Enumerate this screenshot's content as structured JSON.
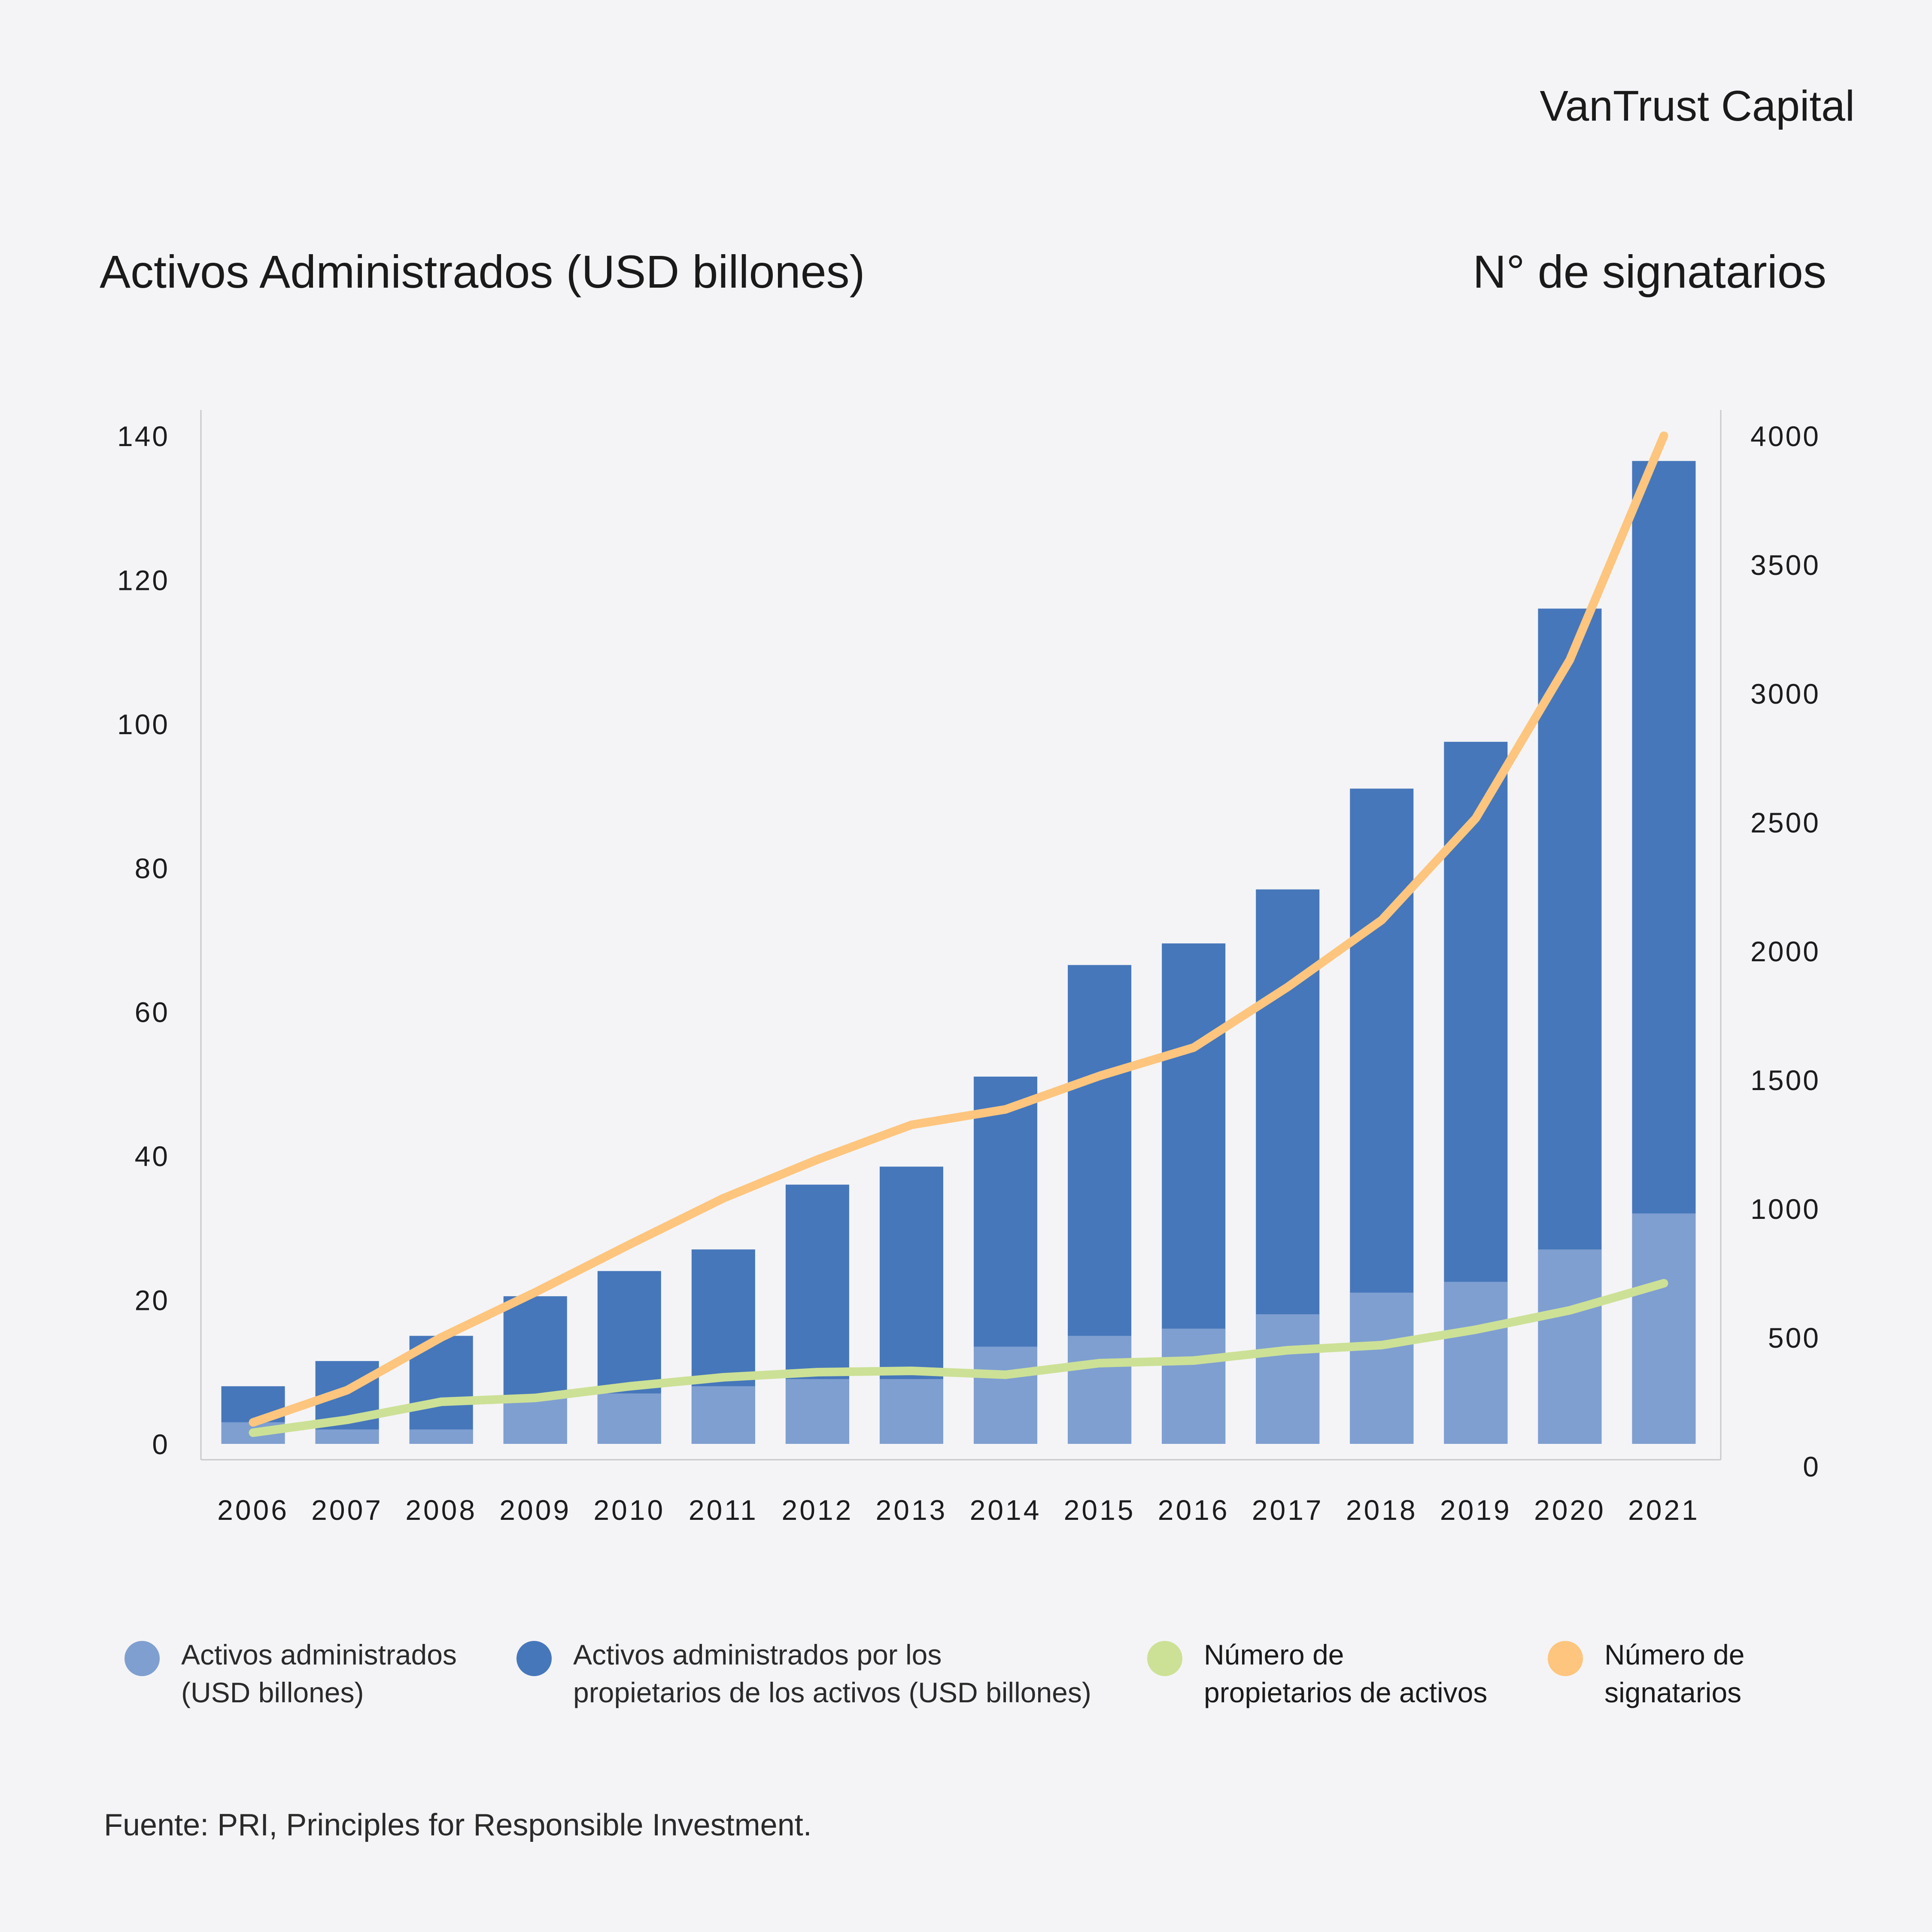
{
  "brand": "VanTrust Capital",
  "titles": {
    "left": "Activos Administrados (USD billones)",
    "right": "N° de signatarios"
  },
  "chart_data": {
    "type": "bar",
    "categories": [
      "2006",
      "2007",
      "2008",
      "2009",
      "2010",
      "2011",
      "2012",
      "2013",
      "2014",
      "2015",
      "2016",
      "2017",
      "2018",
      "2019",
      "2020",
      "2021"
    ],
    "left_axis": {
      "ylim": [
        0,
        140
      ],
      "ticks": [
        0,
        20,
        40,
        60,
        80,
        100,
        120,
        140
      ]
    },
    "right_axis": {
      "ylim": [
        0,
        4000
      ],
      "ticks": [
        0,
        500,
        1000,
        1500,
        2000,
        2500,
        3000,
        3500,
        4000
      ]
    },
    "series": [
      {
        "name": "Activos administrados\n(USD billones)",
        "type": "bar",
        "axis": "left",
        "color": "#7f9fd0",
        "values": [
          3,
          2,
          2,
          6.5,
          7,
          8,
          9,
          9,
          13.5,
          15,
          16,
          18,
          21,
          22.5,
          27,
          32
        ]
      },
      {
        "name": "Activos administrados por los\n propietarios de los activos (USD billones)",
        "type": "bar",
        "axis": "left",
        "color": "#4777bb",
        "values": [
          8,
          11.5,
          15,
          20.5,
          24,
          27,
          36,
          38.5,
          51,
          66.5,
          69.5,
          77,
          91,
          97.5,
          116,
          136.5
        ]
      },
      {
        "name": "Número de\npropietarios de activos",
        "type": "line",
        "axis": "right",
        "color": "#cde196",
        "values": [
          130,
          180,
          250,
          265,
          310,
          345,
          365,
          370,
          355,
          400,
          410,
          450,
          470,
          530,
          605,
          710
        ]
      },
      {
        "name": "Número de\nsignatarios",
        "type": "line",
        "axis": "right",
        "color": "#fdc57d",
        "values": [
          170,
          295,
          500,
          675,
          860,
          1040,
          1190,
          1325,
          1385,
          1515,
          1625,
          1860,
          2120,
          2515,
          3130,
          4000
        ]
      }
    ]
  },
  "source": "Fuente: PRI, Principles for Responsible Investment."
}
